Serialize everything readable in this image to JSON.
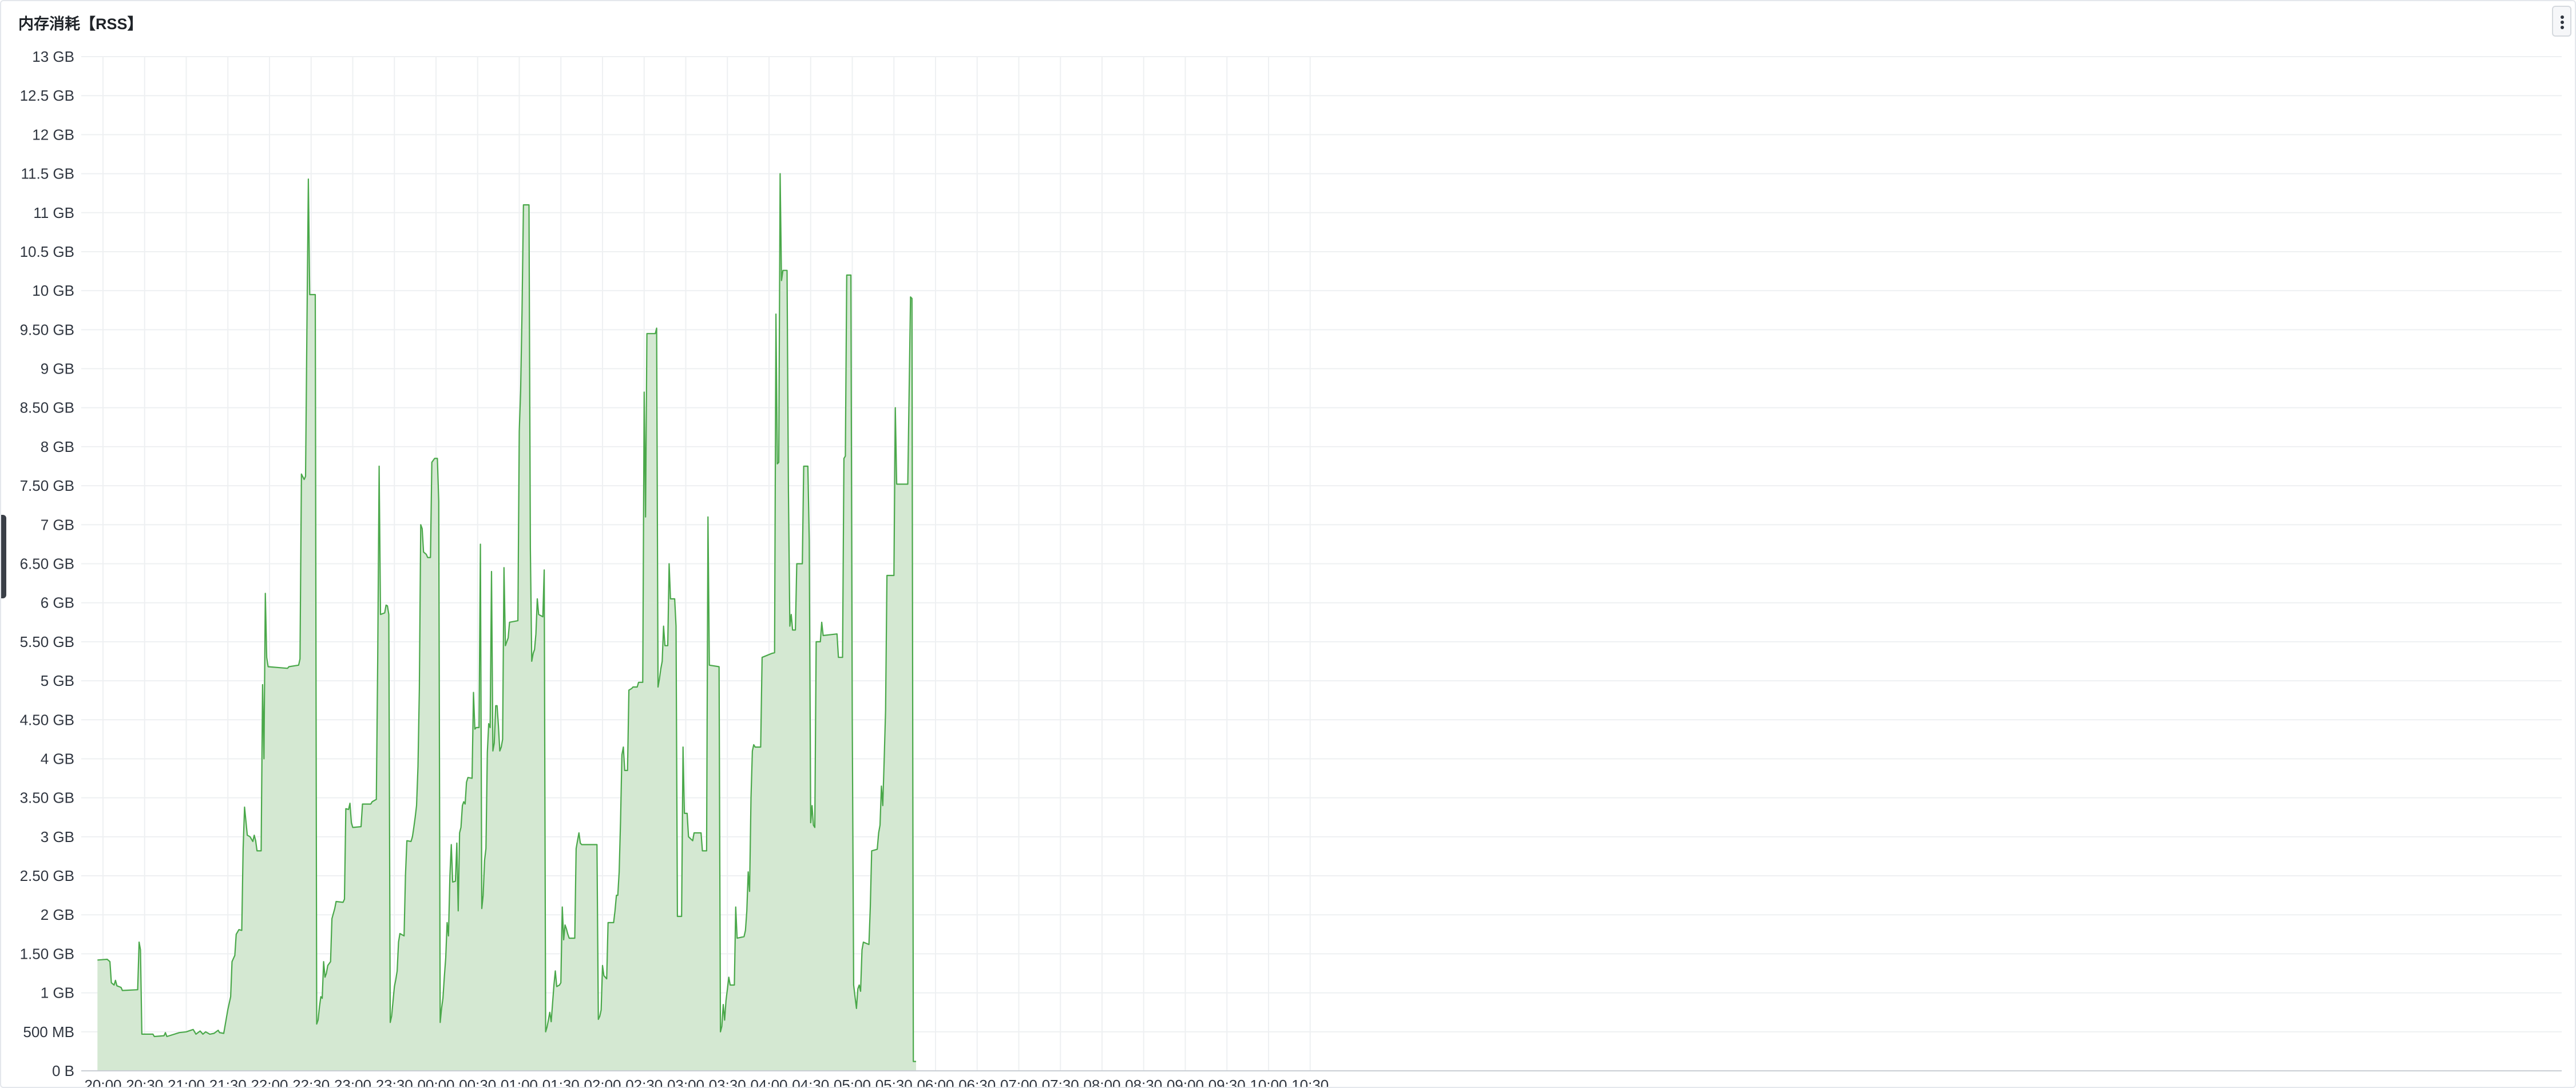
{
  "panel": {
    "title": "内存消耗【RSS】",
    "menu_icon": "more-vertical-icon"
  },
  "chart_data": {
    "type": "area",
    "title": "内存消耗【RSS】",
    "xlabel": "",
    "ylabel": "",
    "series_color": "#4aa84a",
    "fill_color": "#d4e8d2",
    "grid": true,
    "legend": "none",
    "ylim_gb": [
      0,
      13
    ],
    "y_ticks": [
      {
        "v": 0,
        "label": "0 B"
      },
      {
        "v": 0.5,
        "label": "500 MB"
      },
      {
        "v": 1,
        "label": "1 GB"
      },
      {
        "v": 1.5,
        "label": "1.50 GB"
      },
      {
        "v": 2,
        "label": "2 GB"
      },
      {
        "v": 2.5,
        "label": "2.50 GB"
      },
      {
        "v": 3,
        "label": "3 GB"
      },
      {
        "v": 3.5,
        "label": "3.50 GB"
      },
      {
        "v": 4,
        "label": "4 GB"
      },
      {
        "v": 4.5,
        "label": "4.50 GB"
      },
      {
        "v": 5,
        "label": "5 GB"
      },
      {
        "v": 5.5,
        "label": "5.50 GB"
      },
      {
        "v": 6,
        "label": "6 GB"
      },
      {
        "v": 6.5,
        "label": "6.50 GB"
      },
      {
        "v": 7,
        "label": "7 GB"
      },
      {
        "v": 7.5,
        "label": "7.50 GB"
      },
      {
        "v": 8,
        "label": "8 GB"
      },
      {
        "v": 8.5,
        "label": "8.50 GB"
      },
      {
        "v": 9,
        "label": "9 GB"
      },
      {
        "v": 9.5,
        "label": "9.50 GB"
      },
      {
        "v": 10,
        "label": "10 GB"
      },
      {
        "v": 10.5,
        "label": "10.5 GB"
      },
      {
        "v": 11,
        "label": "11 GB"
      },
      {
        "v": 11.5,
        "label": "11.5 GB"
      },
      {
        "v": 12,
        "label": "12 GB"
      },
      {
        "v": 12.5,
        "label": "12.5 GB"
      },
      {
        "v": 13,
        "label": "13 GB"
      }
    ],
    "x_ticks": [
      "20:00",
      "20:30",
      "21:00",
      "21:30",
      "22:00",
      "22:30",
      "23:00",
      "23:30",
      "00:00",
      "00:30",
      "01:00",
      "01:30",
      "02:00",
      "02:30",
      "03:00",
      "03:30",
      "04:00",
      "04:30",
      "05:00",
      "05:30",
      "06:00",
      "06:30",
      "07:00",
      "07:30",
      "08:00",
      "08:30",
      "09:00",
      "09:30",
      "10:00",
      "10:30"
    ],
    "points": [
      [
        "19:56",
        1.42
      ],
      [
        "20:03",
        1.43
      ],
      [
        "20:05",
        1.4
      ],
      [
        "20:06",
        1.13
      ],
      [
        "20:08",
        1.1
      ],
      [
        "20:09",
        1.16
      ],
      [
        "20:10",
        1.09
      ],
      [
        "20:13",
        1.07
      ],
      [
        "20:14",
        1.03
      ],
      [
        "20:25",
        1.04
      ],
      [
        "20:26",
        1.65
      ],
      [
        "20:27",
        1.55
      ],
      [
        "20:28",
        0.47
      ],
      [
        "20:36",
        0.47
      ],
      [
        "20:37",
        0.44
      ],
      [
        "20:44",
        0.45
      ],
      [
        "20:45",
        0.49
      ],
      [
        "20:46",
        0.44
      ],
      [
        "20:55",
        0.49
      ],
      [
        "21:00",
        0.5
      ],
      [
        "21:05",
        0.53
      ],
      [
        "21:07",
        0.47
      ],
      [
        "21:10",
        0.51
      ],
      [
        "21:12",
        0.47
      ],
      [
        "21:14",
        0.5
      ],
      [
        "21:17",
        0.47
      ],
      [
        "21:20",
        0.48
      ],
      [
        "21:23",
        0.52
      ],
      [
        "21:24",
        0.49
      ],
      [
        "21:27",
        0.48
      ],
      [
        "21:30",
        0.79
      ],
      [
        "21:32",
        0.95
      ],
      [
        "21:33",
        1.4
      ],
      [
        "21:35",
        1.48
      ],
      [
        "21:36",
        1.75
      ],
      [
        "21:38",
        1.81
      ],
      [
        "21:40",
        1.8
      ],
      [
        "21:41",
        2.85
      ],
      [
        "21:42",
        3.38
      ],
      [
        "21:44",
        3.02
      ],
      [
        "21:46",
        3.0
      ],
      [
        "21:48",
        2.94
      ],
      [
        "21:49",
        3.02
      ],
      [
        "21:50",
        2.95
      ],
      [
        "21:51",
        2.82
      ],
      [
        "21:54",
        2.82
      ],
      [
        "21:55",
        4.95
      ],
      [
        "21:56",
        4.0
      ],
      [
        "21:57",
        6.12
      ],
      [
        "21:58",
        5.3
      ],
      [
        "21:59",
        5.18
      ],
      [
        "22:13",
        5.16
      ],
      [
        "22:14",
        5.18
      ],
      [
        "22:21",
        5.2
      ],
      [
        "22:22",
        5.28
      ],
      [
        "22:23",
        7.65
      ],
      [
        "22:25",
        7.58
      ],
      [
        "22:26",
        7.62
      ],
      [
        "22:27",
        9.6
      ],
      [
        "22:28",
        11.43
      ],
      [
        "22:29",
        9.95
      ],
      [
        "22:33",
        9.95
      ],
      [
        "22:34",
        0.6
      ],
      [
        "22:35",
        0.65
      ],
      [
        "22:36",
        0.82
      ],
      [
        "22:37",
        0.95
      ],
      [
        "22:38",
        0.93
      ],
      [
        "22:39",
        1.4
      ],
      [
        "22:40",
        1.2
      ],
      [
        "22:41",
        1.25
      ],
      [
        "22:42",
        1.35
      ],
      [
        "22:44",
        1.4
      ],
      [
        "22:45",
        1.95
      ],
      [
        "22:47",
        2.08
      ],
      [
        "22:48",
        2.17
      ],
      [
        "22:53",
        2.16
      ],
      [
        "22:54",
        2.2
      ],
      [
        "22:55",
        3.36
      ],
      [
        "22:57",
        3.35
      ],
      [
        "22:58",
        3.43
      ],
      [
        "22:59",
        3.18
      ],
      [
        "23:00",
        3.12
      ],
      [
        "23:06",
        3.13
      ],
      [
        "23:07",
        3.42
      ],
      [
        "23:13",
        3.42
      ],
      [
        "23:14",
        3.45
      ],
      [
        "23:17",
        3.48
      ],
      [
        "23:18",
        5.26
      ],
      [
        "23:19",
        7.75
      ],
      [
        "23:20",
        5.85
      ],
      [
        "23:23",
        5.87
      ],
      [
        "23:24",
        5.97
      ],
      [
        "23:25",
        5.96
      ],
      [
        "23:26",
        5.85
      ],
      [
        "23:27",
        0.62
      ],
      [
        "23:28",
        0.7
      ],
      [
        "23:30",
        1.08
      ],
      [
        "23:31",
        1.17
      ],
      [
        "23:32",
        1.28
      ],
      [
        "23:33",
        1.65
      ],
      [
        "23:34",
        1.76
      ],
      [
        "23:37",
        1.73
      ],
      [
        "23:38",
        2.5
      ],
      [
        "23:39",
        2.95
      ],
      [
        "23:42",
        2.94
      ],
      [
        "23:43",
        3.0
      ],
      [
        "23:44",
        3.12
      ],
      [
        "23:45",
        3.25
      ],
      [
        "23:46",
        3.4
      ],
      [
        "23:47",
        3.9
      ],
      [
        "23:48",
        4.9
      ],
      [
        "23:49",
        7.0
      ],
      [
        "23:50",
        6.95
      ],
      [
        "23:51",
        6.65
      ],
      [
        "23:53",
        6.62
      ],
      [
        "23:54",
        6.58
      ],
      [
        "23:56",
        6.58
      ],
      [
        "23:57",
        7.8
      ],
      [
        "23:59",
        7.85
      ],
      [
        "24:01",
        7.85
      ],
      [
        "24:02",
        7.3
      ],
      [
        "24:03",
        0.62
      ],
      [
        "24:04",
        0.8
      ],
      [
        "24:05",
        0.93
      ],
      [
        "24:06",
        1.2
      ],
      [
        "24:07",
        1.45
      ],
      [
        "24:08",
        1.9
      ],
      [
        "24:09",
        1.73
      ],
      [
        "24:10",
        2.5
      ],
      [
        "24:11",
        2.9
      ],
      [
        "24:12",
        2.42
      ],
      [
        "24:14",
        2.43
      ],
      [
        "24:15",
        2.92
      ],
      [
        "24:16",
        2.05
      ],
      [
        "24:17",
        3.05
      ],
      [
        "24:18",
        3.12
      ],
      [
        "24:19",
        3.4
      ],
      [
        "24:20",
        3.45
      ],
      [
        "24:21",
        3.42
      ],
      [
        "24:22",
        3.7
      ],
      [
        "24:23",
        3.76
      ],
      [
        "24:26",
        3.75
      ],
      [
        "24:27",
        4.85
      ],
      [
        "24:28",
        4.38
      ],
      [
        "24:29",
        4.4
      ],
      [
        "24:31",
        4.4
      ],
      [
        "24:32",
        6.75
      ],
      [
        "24:33",
        2.08
      ],
      [
        "24:34",
        2.25
      ],
      [
        "24:35",
        2.7
      ],
      [
        "24:36",
        2.85
      ],
      [
        "24:37",
        4.08
      ],
      [
        "24:38",
        4.45
      ],
      [
        "24:39",
        4.4
      ],
      [
        "24:40",
        6.4
      ],
      [
        "24:41",
        4.1
      ],
      [
        "24:42",
        4.2
      ],
      [
        "24:43",
        4.68
      ],
      [
        "24:44",
        4.68
      ],
      [
        "24:45",
        4.42
      ],
      [
        "24:46",
        4.1
      ],
      [
        "24:47",
        4.15
      ],
      [
        "24:48",
        4.25
      ],
      [
        "24:49",
        6.45
      ],
      [
        "24:50",
        5.45
      ],
      [
        "24:51",
        5.5
      ],
      [
        "24:52",
        5.55
      ],
      [
        "24:53",
        5.75
      ],
      [
        "24:59",
        5.77
      ],
      [
        "25:00",
        8.2
      ],
      [
        "25:01",
        8.72
      ],
      [
        "25:02",
        9.72
      ],
      [
        "25:03",
        11.1
      ],
      [
        "25:07",
        11.1
      ],
      [
        "25:08",
        6.7
      ],
      [
        "25:09",
        5.25
      ],
      [
        "25:10",
        5.35
      ],
      [
        "25:11",
        5.4
      ],
      [
        "25:12",
        5.6
      ],
      [
        "25:13",
        6.05
      ],
      [
        "25:14",
        5.85
      ],
      [
        "25:17",
        5.82
      ],
      [
        "25:18",
        6.42
      ],
      [
        "25:19",
        0.5
      ],
      [
        "25:20",
        0.56
      ],
      [
        "25:21",
        0.65
      ],
      [
        "25:22",
        0.75
      ],
      [
        "25:23",
        0.63
      ],
      [
        "25:25",
        1.1
      ],
      [
        "25:26",
        1.28
      ],
      [
        "25:27",
        1.08
      ],
      [
        "25:29",
        1.1
      ],
      [
        "25:30",
        1.13
      ],
      [
        "25:31",
        2.1
      ],
      [
        "25:32",
        1.68
      ],
      [
        "25:33",
        1.87
      ],
      [
        "25:34",
        1.82
      ],
      [
        "25:35",
        1.75
      ],
      [
        "25:36",
        1.7
      ],
      [
        "25:40",
        1.7
      ],
      [
        "25:41",
        2.85
      ],
      [
        "25:42",
        2.95
      ],
      [
        "25:43",
        3.05
      ],
      [
        "25:44",
        2.92
      ],
      [
        "25:45",
        2.9
      ],
      [
        "25:56",
        2.9
      ],
      [
        "25:57",
        0.66
      ],
      [
        "25:58",
        0.7
      ],
      [
        "25:59",
        0.78
      ],
      [
        "26:00",
        1.35
      ],
      [
        "26:01",
        1.22
      ],
      [
        "26:03",
        1.18
      ],
      [
        "26:04",
        1.9
      ],
      [
        "26:08",
        1.9
      ],
      [
        "26:09",
        2.05
      ],
      [
        "26:10",
        2.25
      ],
      [
        "26:11",
        2.25
      ],
      [
        "26:12",
        2.55
      ],
      [
        "26:13",
        3.2
      ],
      [
        "26:14",
        4.05
      ],
      [
        "26:15",
        4.15
      ],
      [
        "26:16",
        3.85
      ],
      [
        "26:18",
        3.85
      ],
      [
        "26:19",
        4.88
      ],
      [
        "26:21",
        4.9
      ],
      [
        "26:22",
        4.92
      ],
      [
        "26:25",
        4.92
      ],
      [
        "26:26",
        4.98
      ],
      [
        "26:29",
        4.98
      ],
      [
        "26:30",
        8.7
      ],
      [
        "26:31",
        7.1
      ],
      [
        "26:32",
        9.45
      ],
      [
        "26:38",
        9.45
      ],
      [
        "26:39",
        9.52
      ],
      [
        "26:40",
        4.92
      ],
      [
        "26:41",
        5.02
      ],
      [
        "26:42",
        5.15
      ],
      [
        "26:43",
        5.25
      ],
      [
        "26:44",
        5.7
      ],
      [
        "26:45",
        5.45
      ],
      [
        "26:47",
        5.45
      ],
      [
        "26:48",
        6.5
      ],
      [
        "26:49",
        6.05
      ],
      [
        "26:52",
        6.05
      ],
      [
        "26:53",
        5.7
      ],
      [
        "26:54",
        1.98
      ],
      [
        "26:57",
        1.98
      ],
      [
        "26:58",
        4.15
      ],
      [
        "26:59",
        3.3
      ],
      [
        "27:01",
        3.3
      ],
      [
        "27:02",
        3.0
      ],
      [
        "27:05",
        2.95
      ],
      [
        "27:06",
        3.05
      ],
      [
        "27:11",
        3.05
      ],
      [
        "27:12",
        2.82
      ],
      [
        "27:15",
        2.82
      ],
      [
        "27:16",
        7.1
      ],
      [
        "27:17",
        5.2
      ],
      [
        "27:24",
        5.18
      ],
      [
        "27:25",
        0.5
      ],
      [
        "27:26",
        0.57
      ],
      [
        "27:27",
        0.85
      ],
      [
        "27:28",
        0.65
      ],
      [
        "27:29",
        0.9
      ],
      [
        "27:30",
        1.05
      ],
      [
        "27:31",
        1.2
      ],
      [
        "27:32",
        1.1
      ],
      [
        "27:35",
        1.1
      ],
      [
        "27:36",
        2.1
      ],
      [
        "27:37",
        1.7
      ],
      [
        "27:42",
        1.72
      ],
      [
        "27:43",
        1.8
      ],
      [
        "27:44",
        2.05
      ],
      [
        "27:45",
        2.55
      ],
      [
        "27:46",
        2.3
      ],
      [
        "27:47",
        3.5
      ],
      [
        "27:48",
        4.1
      ],
      [
        "27:49",
        4.18
      ],
      [
        "27:50",
        4.15
      ],
      [
        "27:54",
        4.15
      ],
      [
        "27:55",
        5.3
      ],
      [
        "28:02",
        5.35
      ],
      [
        "28:04",
        5.36
      ],
      [
        "28:05",
        9.7
      ],
      [
        "28:06",
        7.78
      ],
      [
        "28:07",
        7.8
      ],
      [
        "28:08",
        11.5
      ],
      [
        "28:09",
        10.13
      ],
      [
        "28:10",
        10.26
      ],
      [
        "28:13",
        10.26
      ],
      [
        "28:14",
        7.45
      ],
      [
        "28:15",
        5.7
      ],
      [
        "28:16",
        5.85
      ],
      [
        "28:17",
        5.65
      ],
      [
        "28:19",
        5.65
      ],
      [
        "28:20",
        6.5
      ],
      [
        "28:24",
        6.5
      ],
      [
        "28:25",
        7.75
      ],
      [
        "28:28",
        7.75
      ],
      [
        "28:29",
        6.8
      ],
      [
        "28:30",
        3.18
      ],
      [
        "28:31",
        3.4
      ],
      [
        "28:32",
        3.15
      ],
      [
        "28:33",
        3.12
      ],
      [
        "28:34",
        5.5
      ],
      [
        "28:37",
        5.5
      ],
      [
        "28:38",
        5.75
      ],
      [
        "28:39",
        5.58
      ],
      [
        "28:49",
        5.6
      ],
      [
        "28:50",
        5.3
      ],
      [
        "28:53",
        5.3
      ],
      [
        "28:54",
        7.85
      ],
      [
        "28:55",
        7.88
      ],
      [
        "28:56",
        10.2
      ],
      [
        "28:59",
        10.2
      ],
      [
        "29:00",
        4.5
      ],
      [
        "29:01",
        1.1
      ],
      [
        "29:02",
        0.95
      ],
      [
        "29:03",
        0.8
      ],
      [
        "29:04",
        1.05
      ],
      [
        "29:05",
        1.1
      ],
      [
        "29:06",
        1.02
      ],
      [
        "29:07",
        1.55
      ],
      [
        "29:08",
        1.65
      ],
      [
        "29:12",
        1.62
      ],
      [
        "29:13",
        2.1
      ],
      [
        "29:14",
        2.82
      ],
      [
        "29:18",
        2.84
      ],
      [
        "29:19",
        3.05
      ],
      [
        "29:20",
        3.15
      ],
      [
        "29:21",
        3.65
      ],
      [
        "29:22",
        3.4
      ],
      [
        "29:23",
        4.0
      ],
      [
        "29:24",
        4.62
      ],
      [
        "29:25",
        6.35
      ],
      [
        "29:30",
        6.35
      ],
      [
        "29:31",
        8.5
      ],
      [
        "29:32",
        7.52
      ],
      [
        "29:40",
        7.52
      ],
      [
        "29:42",
        9.92
      ],
      [
        "29:43",
        9.9
      ],
      [
        "29:44",
        0.12
      ],
      [
        "29:46",
        0.12
      ]
    ]
  }
}
